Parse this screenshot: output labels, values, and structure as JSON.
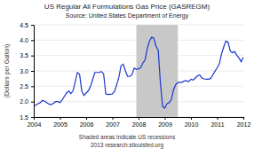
{
  "chart_data": {
    "type": "line",
    "title": "US Regular All Formulations Gas Price (GASREGM)",
    "subtitle": "Source:  United States Department of Energy",
    "annotations": [
      "Shaded areas indicate US recessions",
      "2013 research.stlouisfed.org"
    ],
    "ylabel": "(Dollars per Gallon)",
    "color": "#1a35cc",
    "grid": true,
    "xlim": [
      2004.0,
      2012.0
    ],
    "ylim": [
      1.5,
      4.5
    ],
    "xticks": [
      2004,
      2005,
      2006,
      2007,
      2008,
      2009,
      2010,
      2011,
      2012
    ],
    "yticks": [
      1.5,
      {
        "value": 2.0,
        "label": "2.0"
      },
      2.5,
      {
        "value": 3.0,
        "label": "3.0"
      },
      3.5,
      {
        "value": 4.0,
        "label": "4.0"
      },
      4.5
    ],
    "shaded_ranges": [
      {
        "start": 2007.917,
        "end": 2009.5,
        "color": "#c8c8c8"
      }
    ],
    "x": [
      2004.0,
      2004.083,
      2004.167,
      2004.25,
      2004.333,
      2004.417,
      2004.5,
      2004.583,
      2004.667,
      2004.75,
      2004.833,
      2004.917,
      2005.0,
      2005.083,
      2005.167,
      2005.25,
      2005.333,
      2005.417,
      2005.5,
      2005.583,
      2005.667,
      2005.75,
      2005.833,
      2005.917,
      2006.0,
      2006.083,
      2006.167,
      2006.25,
      2006.333,
      2006.417,
      2006.5,
      2006.583,
      2006.667,
      2006.75,
      2006.833,
      2006.917,
      2007.0,
      2007.083,
      2007.167,
      2007.25,
      2007.333,
      2007.417,
      2007.5,
      2007.583,
      2007.667,
      2007.75,
      2007.833,
      2007.917,
      2008.0,
      2008.083,
      2008.167,
      2008.25,
      2008.333,
      2008.417,
      2008.5,
      2008.583,
      2008.667,
      2008.75,
      2008.833,
      2008.917,
      2009.0,
      2009.083,
      2009.167,
      2009.25,
      2009.333,
      2009.417,
      2009.5,
      2009.583,
      2009.667,
      2009.75,
      2009.833,
      2009.917,
      2010.0,
      2010.083,
      2010.167,
      2010.25,
      2010.333,
      2010.417,
      2010.5,
      2010.583,
      2010.667,
      2010.75,
      2010.833,
      2010.917,
      2011.0,
      2011.083,
      2011.167,
      2011.25,
      2011.333,
      2011.417,
      2011.5,
      2011.583,
      2011.667,
      2011.75,
      2011.833,
      2011.917,
      2012.0
    ],
    "values": [
      1.86,
      1.89,
      1.93,
      1.97,
      2.04,
      2.01,
      1.96,
      1.92,
      1.9,
      1.95,
      2.0,
      2.0,
      1.97,
      2.05,
      2.17,
      2.28,
      2.35,
      2.26,
      2.35,
      2.65,
      2.95,
      2.89,
      2.34,
      2.2,
      2.28,
      2.35,
      2.5,
      2.72,
      2.95,
      2.95,
      2.95,
      2.98,
      2.9,
      2.25,
      2.23,
      2.24,
      2.25,
      2.33,
      2.55,
      2.8,
      3.17,
      3.22,
      3.0,
      2.82,
      2.82,
      2.88,
      3.09,
      3.05,
      3.07,
      3.11,
      3.26,
      3.35,
      3.73,
      3.97,
      4.1,
      4.06,
      3.8,
      3.68,
      2.62,
      1.85,
      1.79,
      1.93,
      1.97,
      2.06,
      2.38,
      2.55,
      2.62,
      2.63,
      2.63,
      2.68,
      2.68,
      2.65,
      2.73,
      2.7,
      2.77,
      2.84,
      2.87,
      2.77,
      2.74,
      2.73,
      2.73,
      2.75,
      2.87,
      2.99,
      3.1,
      3.23,
      3.55,
      3.78,
      3.97,
      3.93,
      3.65,
      3.59,
      3.63,
      3.51,
      3.42,
      3.3,
      3.45
    ]
  }
}
